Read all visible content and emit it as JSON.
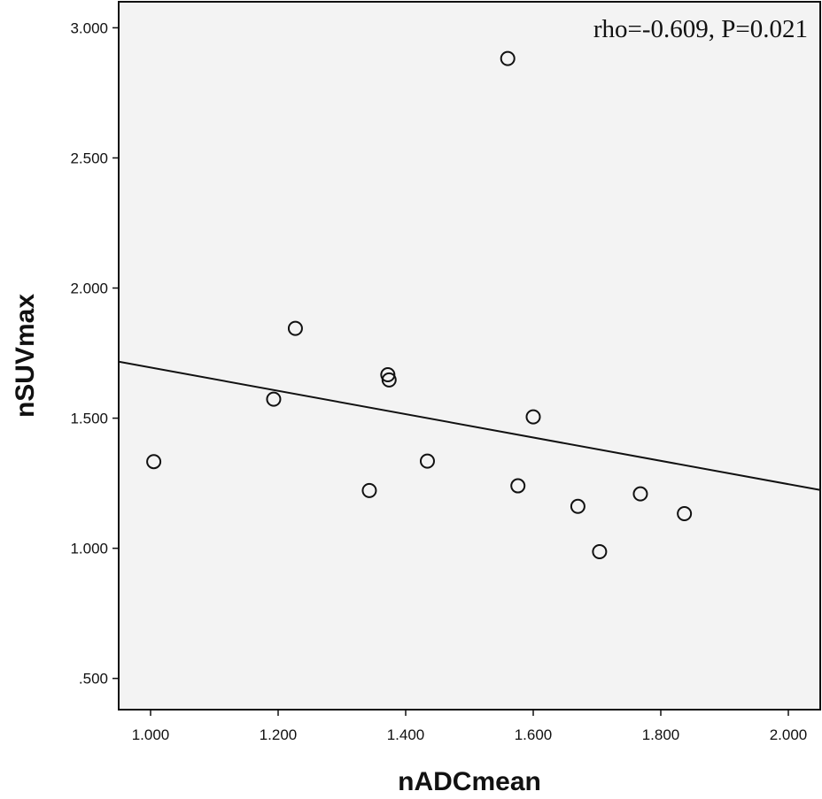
{
  "chart_data": {
    "type": "scatter",
    "title": "",
    "xlabel": "nADCmean",
    "ylabel": "nSUVmax",
    "xlim": [
      0.95,
      2.05
    ],
    "ylim": [
      0.38,
      3.1
    ],
    "xticks": [
      1.0,
      1.2,
      1.4,
      1.6,
      1.8,
      2.0
    ],
    "xtick_labels": [
      "1.000",
      "1.200",
      "1.400",
      "1.600",
      "1.800",
      "2.000"
    ],
    "yticks": [
      0.5,
      1.0,
      1.5,
      2.0,
      2.5,
      3.0
    ],
    "ytick_labels": [
      ".500",
      "1.000",
      "1.500",
      "2.000",
      "2.500",
      "3.000"
    ],
    "grid": false,
    "annotation": "rho=-0.609, P=0.021",
    "series": [
      {
        "x": [
          1.005,
          1.193,
          1.227,
          1.343,
          1.372,
          1.374,
          1.434,
          1.56,
          1.576,
          1.6,
          1.67,
          1.704,
          1.768,
          1.837
        ],
        "y": [
          1.333,
          1.573,
          1.845,
          1.222,
          1.667,
          1.647,
          1.335,
          2.882,
          1.24,
          1.505,
          1.161,
          0.987,
          1.209,
          1.133
        ]
      }
    ],
    "fit_line": {
      "x": [
        0.95,
        2.05
      ],
      "y": [
        1.717,
        1.224
      ]
    }
  },
  "colors": {
    "plot_background": "#f3f3f3",
    "marker_stroke": "#111111",
    "line": "#111111"
  }
}
